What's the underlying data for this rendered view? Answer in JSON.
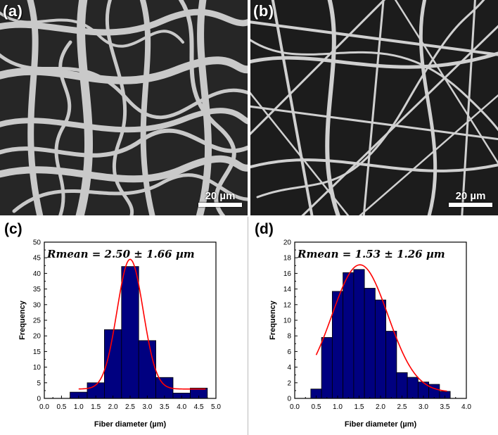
{
  "images": {
    "a": {
      "label": "(a)",
      "scale_bar": "20 µm"
    },
    "b": {
      "label": "(b)",
      "scale_bar": "20 µm"
    }
  },
  "chart_data": [
    {
      "panel": "(c)",
      "type": "bar",
      "annotation": "Rmean = 2.50 ± 1.66 µm",
      "xlabel": "Fiber diameter (µm)",
      "ylabel": "Frequency",
      "xlim": [
        0.0,
        5.0
      ],
      "ylim": [
        0,
        50
      ],
      "xticks": [
        "0.0",
        "0.5",
        "1.0",
        "1.5",
        "2.0",
        "2.5",
        "3.0",
        "3.5",
        "4.0",
        "4.5",
        "5.0"
      ],
      "yticks": [
        "0",
        "5",
        "10",
        "15",
        "20",
        "25",
        "30",
        "35",
        "40",
        "45",
        "50"
      ],
      "bin_width": 0.5,
      "bin_centers": [
        1.0,
        1.5,
        2.0,
        2.5,
        3.0,
        3.5,
        4.0,
        4.5
      ],
      "values": [
        2.0,
        5.0,
        22.0,
        42.2,
        18.5,
        6.7,
        1.7,
        3.3
      ],
      "fit": {
        "mean": 2.5,
        "sigma": 0.38,
        "amplitude": 41.5,
        "baseline": 3.0,
        "x_range": [
          1.0,
          4.7
        ]
      },
      "colors": {
        "bar": "#000080",
        "fit": "#ff0000"
      }
    },
    {
      "panel": "(d)",
      "type": "bar",
      "annotation": "Rmean = 1.53 ± 1.26 µm",
      "xlabel": "Fiber diameter (µm)",
      "ylabel": "Frequency",
      "xlim": [
        0.0,
        4.0
      ],
      "ylim": [
        0,
        20
      ],
      "xticks": [
        "0.0",
        "0.5",
        "1.0",
        "1.5",
        "2.0",
        "2.5",
        "3.0",
        "3.5",
        "4.0"
      ],
      "yticks": [
        "0",
        "2",
        "4",
        "6",
        "8",
        "10",
        "12",
        "14",
        "16",
        "18",
        "20"
      ],
      "bin_width": 0.25,
      "bin_centers": [
        0.5,
        0.75,
        1.0,
        1.25,
        1.5,
        1.75,
        2.0,
        2.25,
        2.5,
        2.75,
        3.0,
        3.25,
        3.5
      ],
      "values": [
        1.2,
        7.8,
        13.7,
        16.1,
        16.5,
        14.1,
        12.6,
        8.6,
        3.3,
        2.7,
        2.1,
        1.8,
        0.9
      ],
      "fit": {
        "mean": 1.52,
        "sigma": 0.65,
        "amplitude": 16.3,
        "baseline": 0.8,
        "x_range": [
          0.5,
          3.55
        ]
      },
      "colors": {
        "bar": "#000080",
        "fit": "#ff0000"
      }
    }
  ]
}
